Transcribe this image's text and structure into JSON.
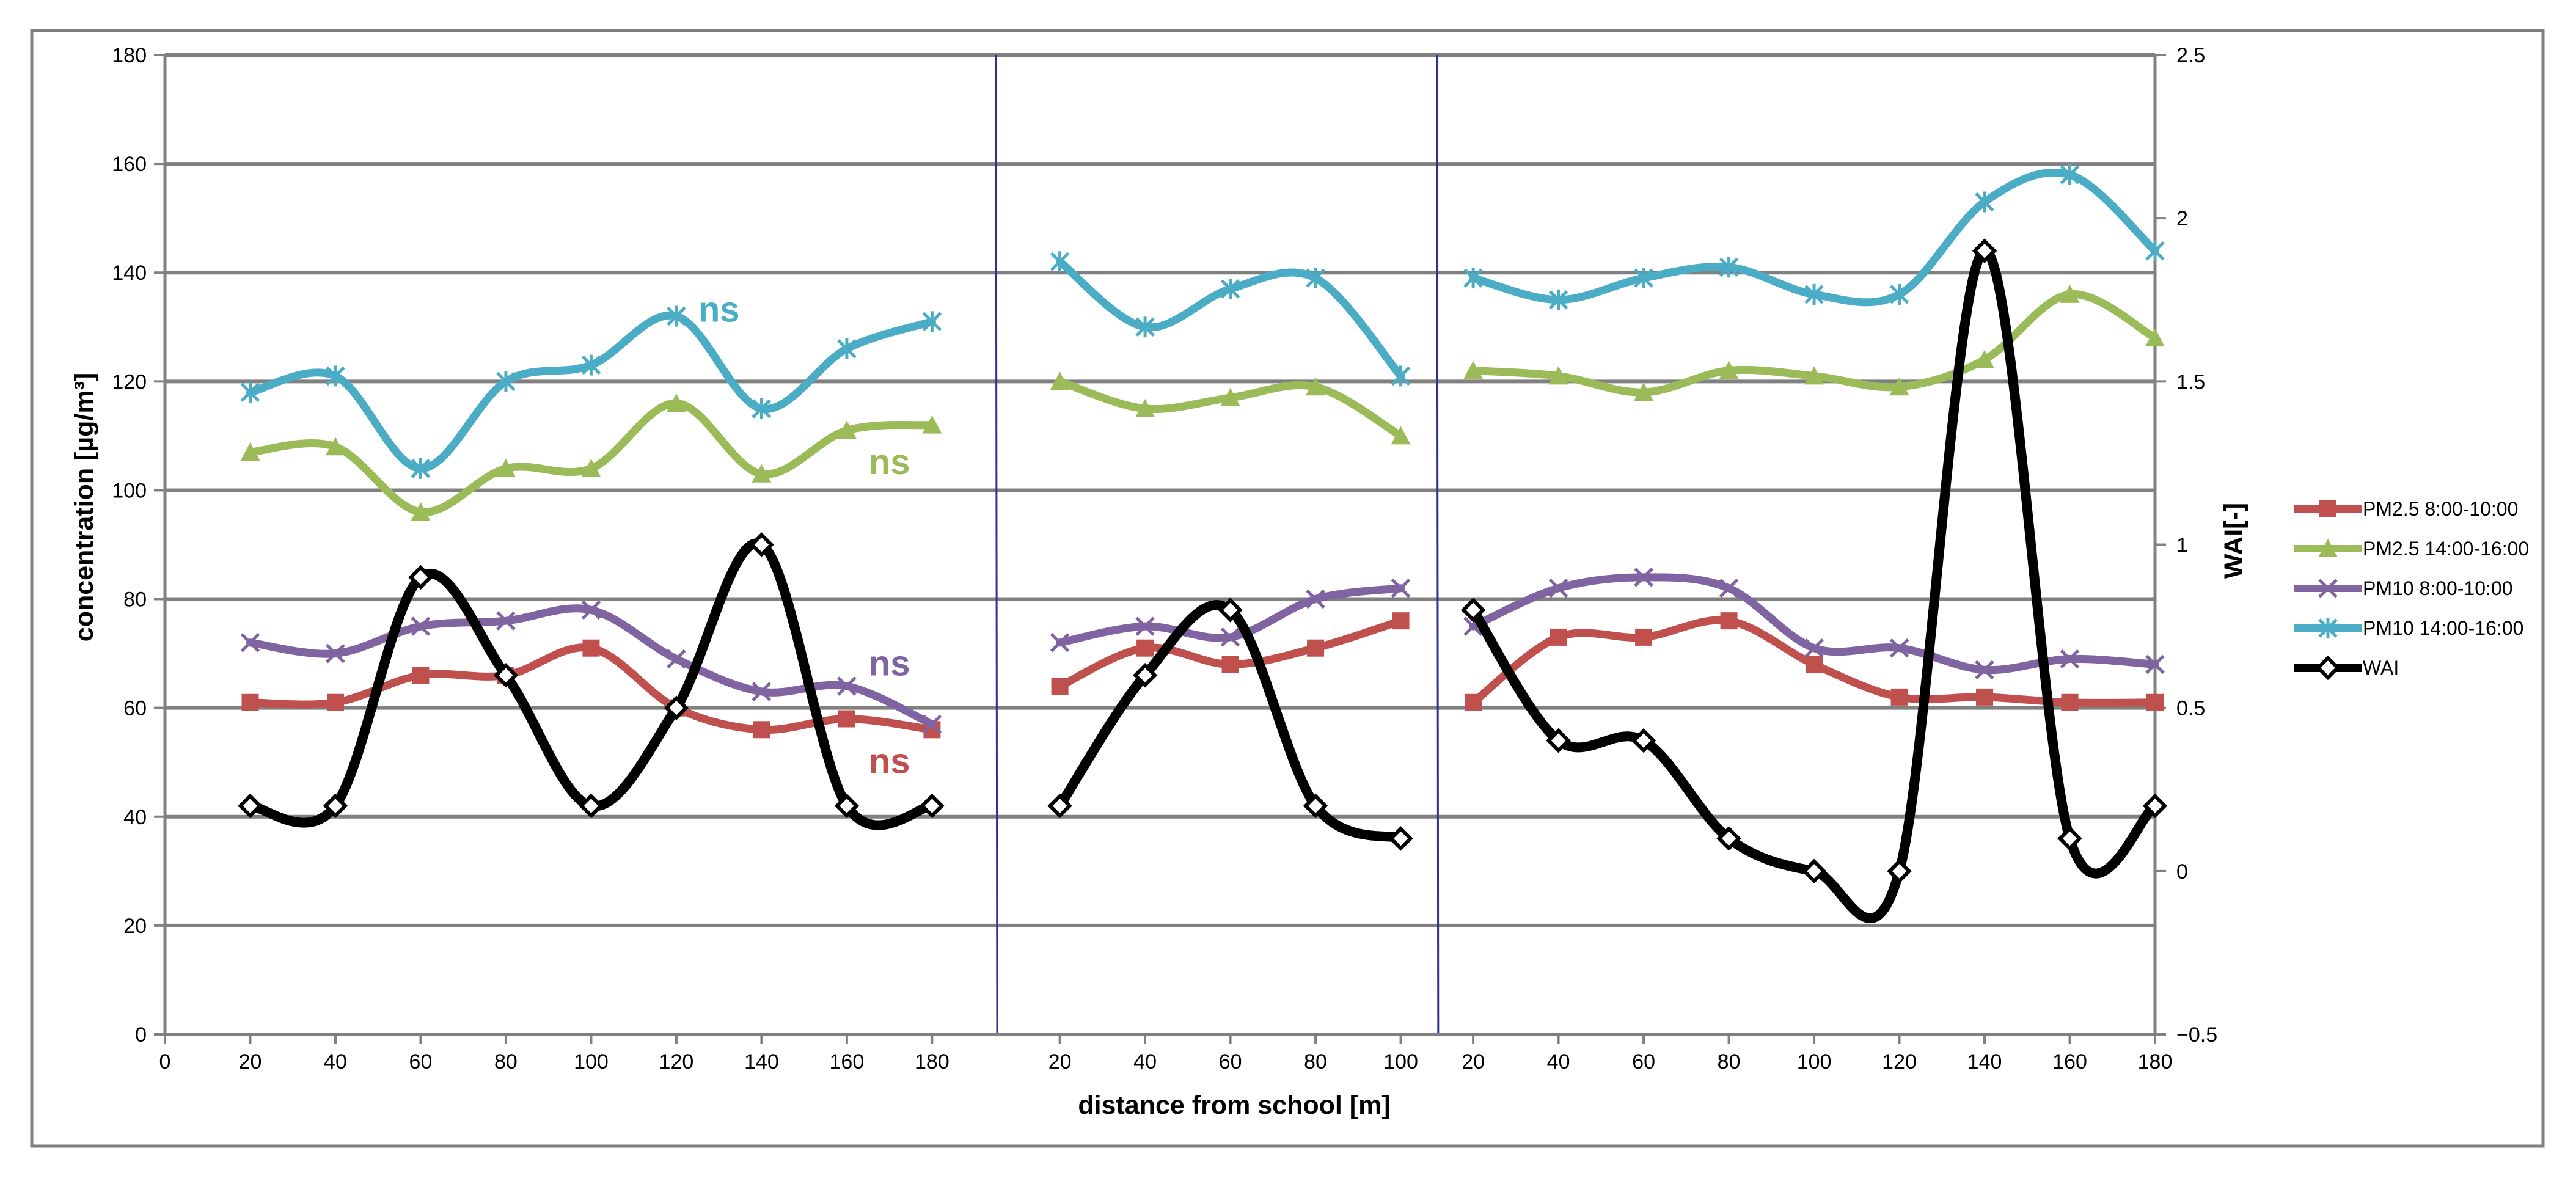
{
  "chart_data": {
    "type": "line",
    "title": "",
    "xlabel": "distance from school [m]",
    "ylabel": "concentration [µg/m³]",
    "ylabel_right": "WAI[-]",
    "ylim": [
      0,
      180
    ],
    "yticks": [
      0,
      20,
      40,
      60,
      80,
      100,
      120,
      140,
      160,
      180
    ],
    "ylim_right": [
      -0.5,
      2.5
    ],
    "yticks_right": [
      "−0.5",
      "0",
      "0.5",
      "1",
      "1.5",
      "2",
      "2.5"
    ],
    "xlim": [
      0,
      180
    ],
    "xticks": [
      "0",
      "20",
      "40",
      "60",
      "80",
      "100",
      "120",
      "140",
      "160",
      "180",
      "20",
      "40",
      "60",
      "80",
      "100",
      "20",
      "40",
      "60",
      "80",
      "100",
      "120",
      "140",
      "160",
      "180"
    ],
    "grid": true,
    "legend_position": "right",
    "segments": [
      {
        "x": [
          20,
          40,
          60,
          80,
          100,
          120,
          140,
          160,
          180
        ],
        "series": [
          {
            "name": "PM2.5 8:00-10:00",
            "values": [
              61,
              61,
              66,
              66,
              71,
              60,
              56,
              58,
              56
            ]
          },
          {
            "name": "PM2.5 14:00-16:00",
            "values": [
              107,
              108,
              96,
              104,
              104,
              116,
              103,
              111,
              112
            ]
          },
          {
            "name": "PM10 8:00-10:00",
            "values": [
              72,
              70,
              75,
              76,
              78,
              69,
              63,
              64,
              57
            ]
          },
          {
            "name": "PM10 14:00-16:00",
            "values": [
              118,
              121,
              104,
              120,
              123,
              132,
              115,
              126,
              131
            ]
          },
          {
            "name": "WAI",
            "values": [
              0.2,
              0.2,
              0.9,
              0.6,
              0.2,
              0.5,
              1.0,
              0.2,
              0.2
            ]
          }
        ]
      },
      {
        "x": [
          20,
          40,
          60,
          80,
          100
        ],
        "series": [
          {
            "name": "PM2.5 8:00-10:00",
            "values": [
              64,
              71,
              68,
              71,
              76
            ]
          },
          {
            "name": "PM2.5 14:00-16:00",
            "values": [
              120,
              115,
              117,
              119,
              110
            ]
          },
          {
            "name": "PM10 8:00-10:00",
            "values": [
              72,
              75,
              73,
              80,
              82
            ]
          },
          {
            "name": "PM10 14:00-16:00",
            "values": [
              142,
              130,
              137,
              139,
              121
            ]
          },
          {
            "name": "WAI",
            "values": [
              0.2,
              0.6,
              0.8,
              0.2,
              0.1
            ]
          }
        ]
      },
      {
        "x": [
          20,
          40,
          60,
          80,
          100,
          120,
          140,
          160,
          180
        ],
        "series": [
          {
            "name": "PM2.5 8:00-10:00",
            "values": [
              61,
              73,
              73,
              76,
              68,
              62,
              62,
              61,
              61
            ]
          },
          {
            "name": "PM2.5 14:00-16:00",
            "values": [
              122,
              121,
              118,
              122,
              121,
              119,
              124,
              136,
              128
            ]
          },
          {
            "name": "PM10 8:00-10:00",
            "values": [
              75,
              82,
              84,
              82,
              71,
              71,
              67,
              69,
              68
            ]
          },
          {
            "name": "PM10 14:00-16:00",
            "values": [
              139,
              135,
              139,
              141,
              136,
              136,
              153,
              158,
              144
            ]
          },
          {
            "name": "WAI",
            "values": [
              0.8,
              0.4,
              0.4,
              0.1,
              0.0,
              0.0,
              1.9,
              0.1,
              0.2
            ]
          }
        ]
      }
    ],
    "legend": [
      {
        "name": "PM2.5 8:00-10:00",
        "color": "#c0504d",
        "marker": "square"
      },
      {
        "name": "PM2.5 14:00-16:00",
        "color": "#9bbb59",
        "marker": "triangle"
      },
      {
        "name": "PM10 8:00-10:00",
        "color": "#8064a2",
        "marker": "x"
      },
      {
        "name": "PM10 14:00-16:00",
        "color": "#4bacc6",
        "marker": "star"
      },
      {
        "name": "WAI",
        "color": "#000000",
        "marker": "diamond"
      }
    ],
    "annotations": [
      {
        "text": "ns",
        "color": "#4bacc6",
        "x": 130,
        "y": 133
      },
      {
        "text": "ns",
        "color": "#9bbb59",
        "x": 170,
        "y": 105
      },
      {
        "text": "ns",
        "color": "#8064a2",
        "x": 170,
        "y": 68
      },
      {
        "text": "ns",
        "color": "#c0504d",
        "x": 170,
        "y": 50
      }
    ]
  }
}
